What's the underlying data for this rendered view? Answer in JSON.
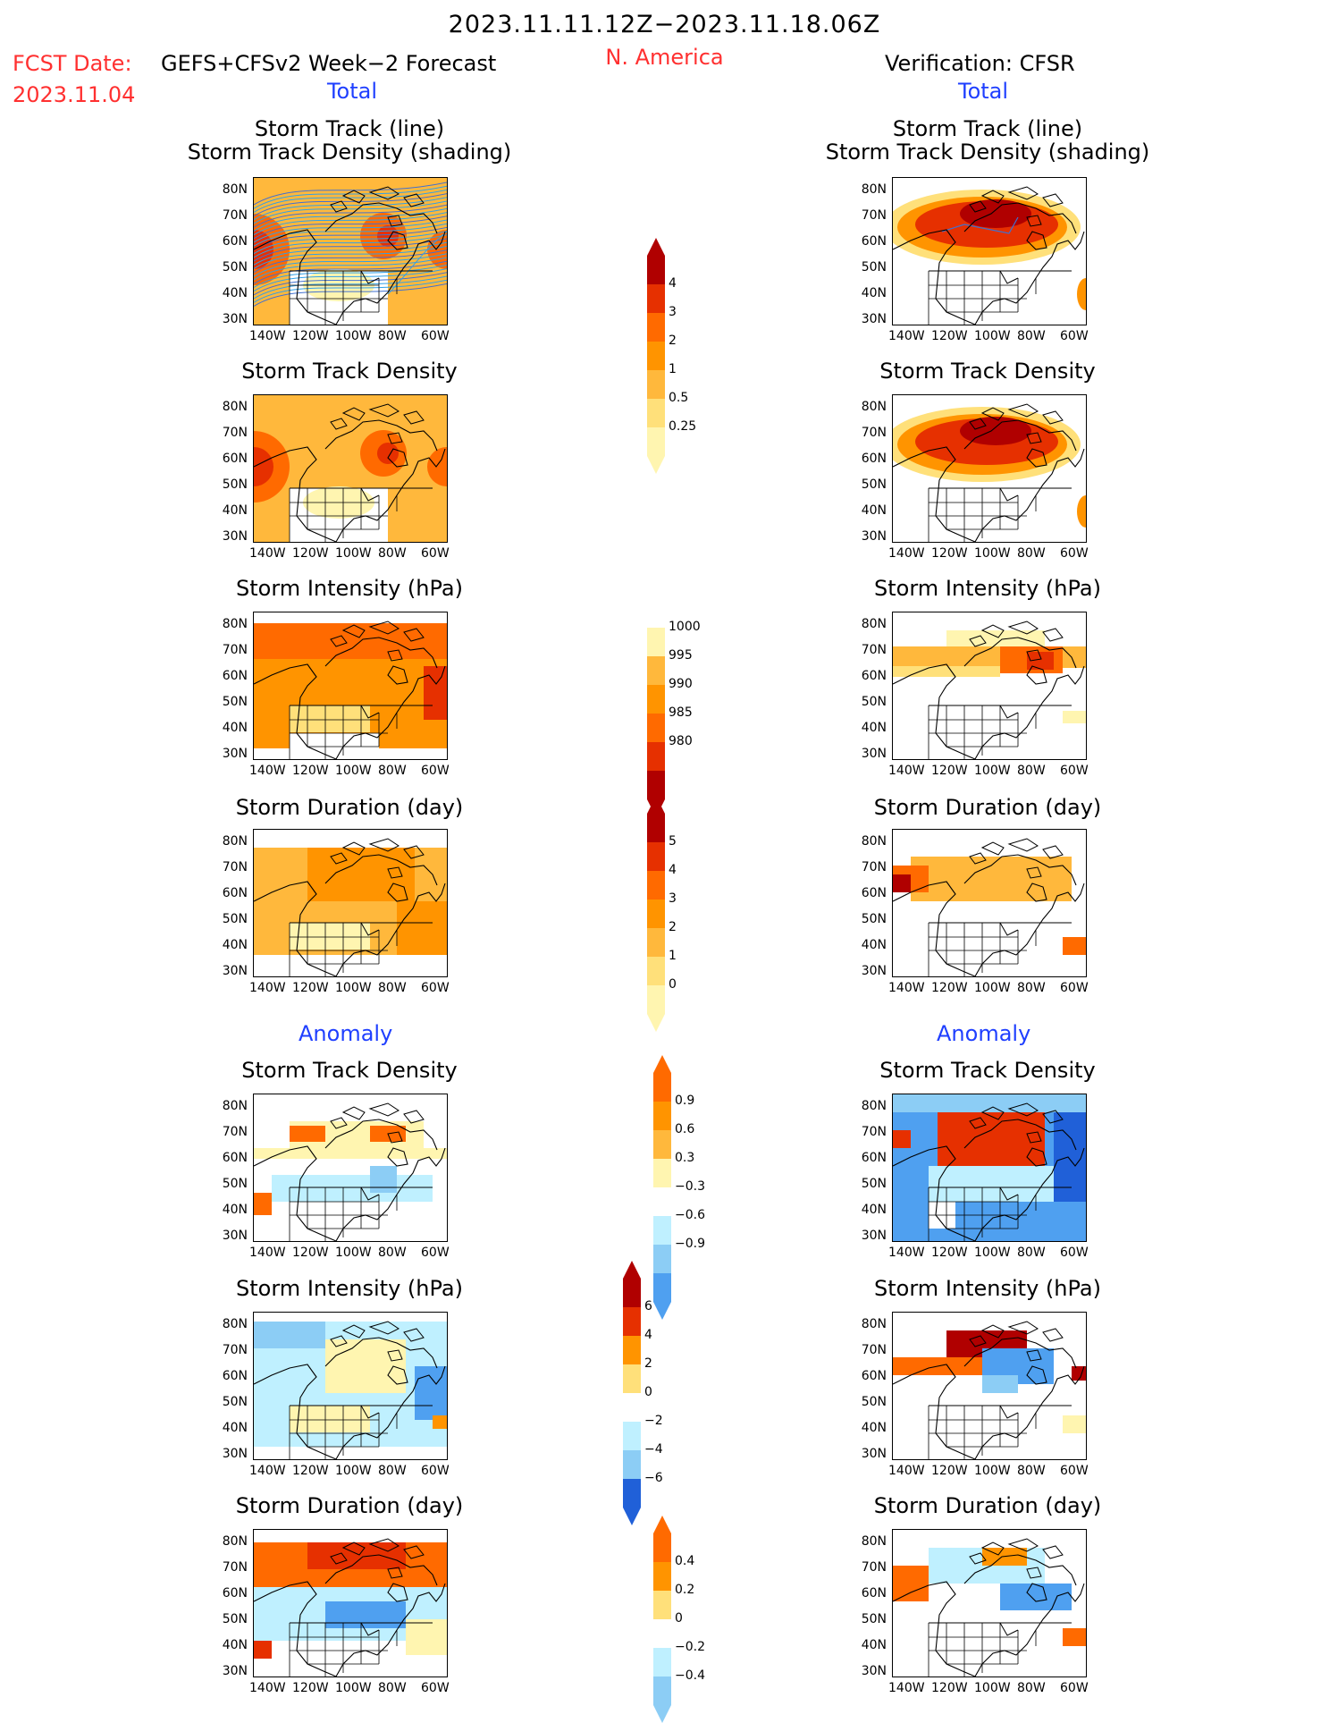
{
  "header": {
    "title": "2023.11.11.12Z−2023.11.18.06Z",
    "fcst_label": "FCST Date:",
    "fcst_date": "2023.11.04",
    "model": "GEFS+CFSv2 Week−2 Forecast",
    "region": "N. America",
    "verification": "Verification: CFSR"
  },
  "sections": {
    "total": "Total",
    "anomaly": "Anomaly"
  },
  "axes": {
    "lat_labels": [
      "80N",
      "70N",
      "60N",
      "50N",
      "40N",
      "30N"
    ],
    "lon_labels": [
      "140W",
      "120W",
      "100W",
      "80W",
      "60W"
    ]
  },
  "panels": {
    "track_line_title_1": "Storm Track (line)",
    "track_line_title_2": "Storm Track Density (shading)",
    "track_density": "Storm Track Density",
    "intensity": "Storm Intensity (hPa)",
    "duration": "Storm Duration (day)"
  },
  "colorbars": {
    "density_total": [
      "4",
      "3",
      "2",
      "1",
      "0.5",
      "0.25"
    ],
    "intensity_total": [
      "1000",
      "995",
      "990",
      "985",
      "980"
    ],
    "duration_total": [
      "5",
      "4",
      "3",
      "2",
      "1",
      "0"
    ],
    "density_anom": [
      "0.9",
      "0.6",
      "0.3",
      "−0.3",
      "−0.6",
      "−0.9"
    ],
    "intensity_anom": [
      "6",
      "4",
      "2",
      "0",
      "−2",
      "−4",
      "−6"
    ],
    "duration_anom": [
      "0.4",
      "0.2",
      "0",
      "−0.2",
      "−0.4"
    ]
  },
  "colors": {
    "warm": [
      "#fff5b0",
      "#ffe07a",
      "#ffb83c",
      "#ff9400",
      "#ff6a00",
      "#e63000",
      "#b00000"
    ],
    "cool": [
      "#bff0ff",
      "#8ccdf5",
      "#4fa0f0",
      "#2060d8"
    ],
    "red_text": "#ff3030",
    "blue_text": "#1f3fff"
  }
}
